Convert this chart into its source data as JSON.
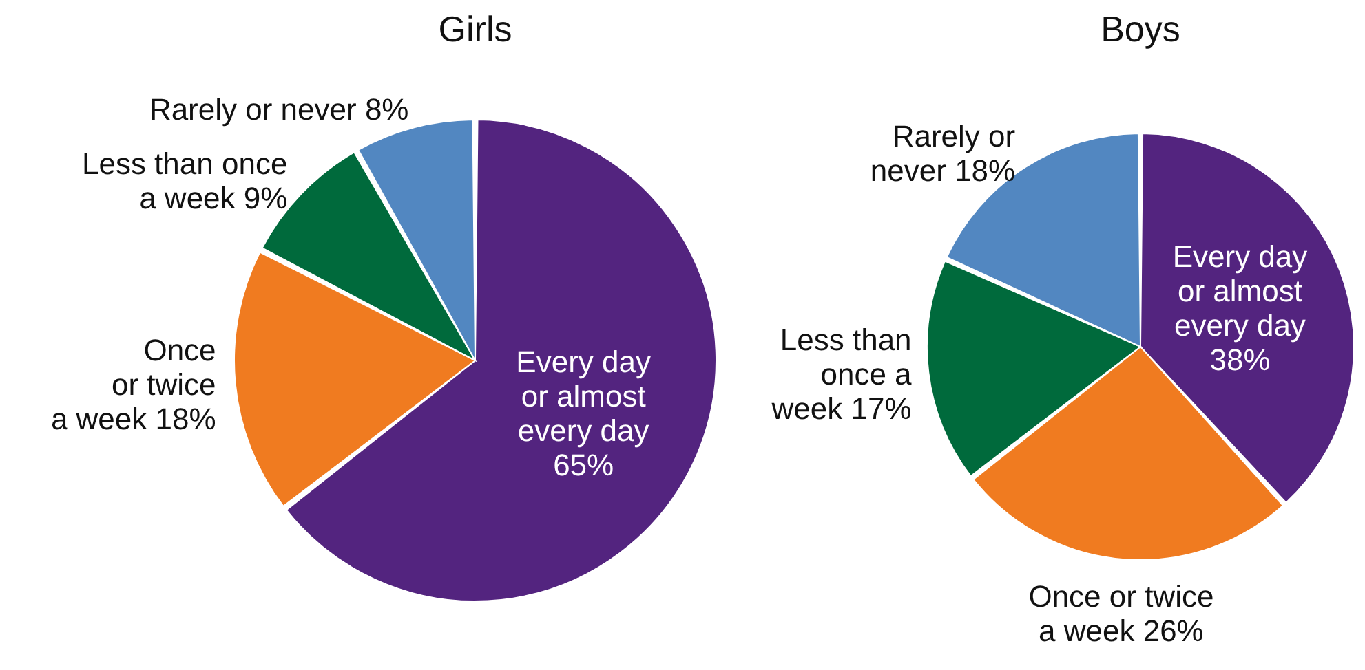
{
  "chart_data": [
    {
      "type": "pie",
      "title": "Girls",
      "categories": [
        "Every day\nor almost\nevery day",
        "Once\nor twice\na week",
        "Less than once\na week",
        "Rarely or never"
      ],
      "values": [
        65,
        18,
        9,
        8
      ],
      "value_labels": [
        "65%",
        "18%",
        "9%",
        "8%"
      ],
      "colors": [
        "#53247f",
        "#f07b20",
        "#006a3c",
        "#5287c1"
      ]
    },
    {
      "type": "pie",
      "title": "Boys",
      "categories": [
        "Every day\nor almost\nevery day",
        "Once or twice\na week",
        "Less than\nonce a\nweek",
        "Rarely or\nnever"
      ],
      "values": [
        38,
        26,
        17,
        18
      ],
      "value_labels": [
        "38%",
        "26%",
        "17%",
        "18%"
      ],
      "colors": [
        "#53247f",
        "#f07b20",
        "#006a3c",
        "#5287c1"
      ]
    }
  ]
}
